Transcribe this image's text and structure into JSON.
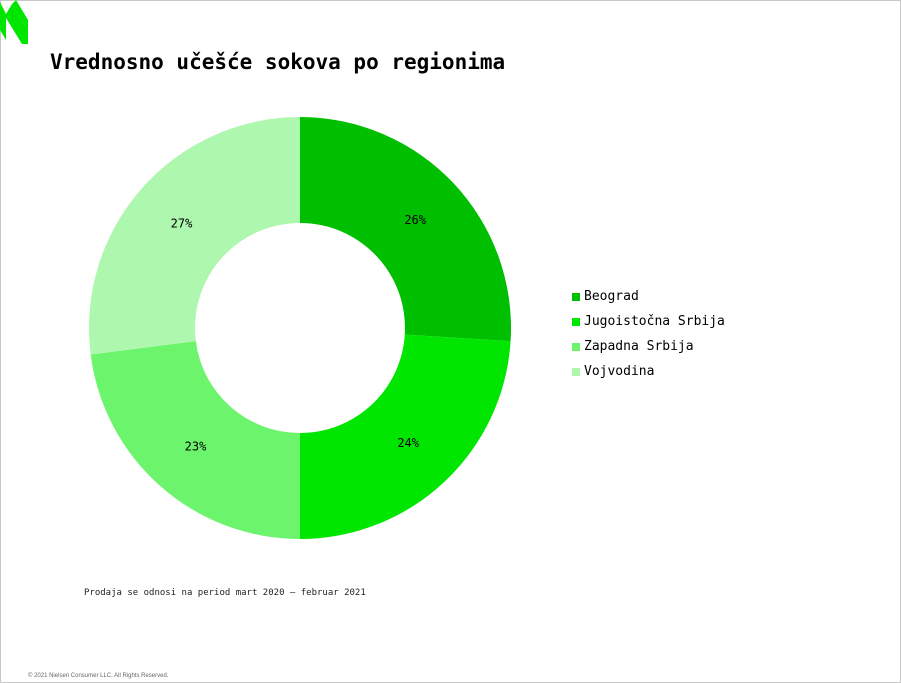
{
  "slide": {
    "title": "Vrednosno učešće sokova po regionima",
    "footnote": "Prodaja se odnosi na period mart 2020 – februar 2021",
    "copyright": "© 2021 Nielsen Consumer LLC. All Rights Reserved.",
    "logo_icon": "nielsen-n-logo-icon",
    "logo_color": "#00e600"
  },
  "chart_data": {
    "type": "pie",
    "donut": true,
    "title": "",
    "legend_position": "right",
    "slices": [
      {
        "label": "Beograd",
        "value": 26,
        "display": "26%",
        "color": "#00bf00"
      },
      {
        "label": "Jugoistočna Srbija",
        "value": 24,
        "display": "24%",
        "color": "#00e600"
      },
      {
        "label": "Zapadna Srbija",
        "value": 23,
        "display": "23%",
        "color": "#6df46d"
      },
      {
        "label": "Vojvodina",
        "value": 27,
        "display": "27%",
        "color": "#aef7ae"
      }
    ]
  }
}
